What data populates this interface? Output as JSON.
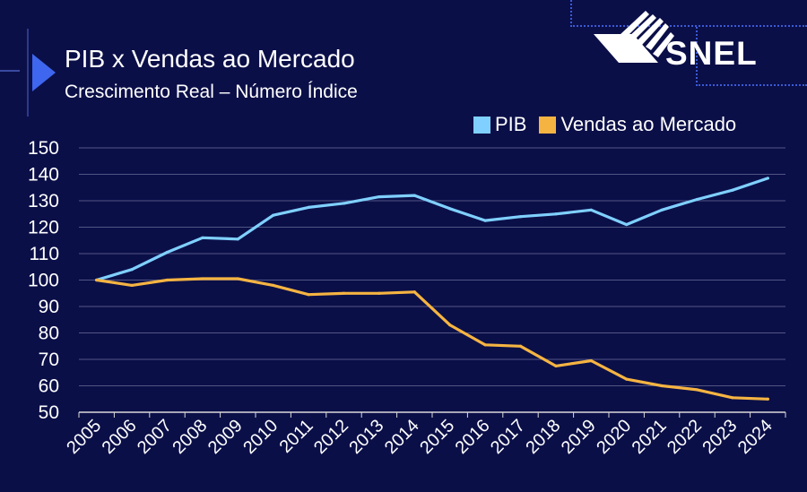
{
  "header": {
    "title": "PIB x Vendas ao Mercado",
    "subtitle": "Crescimento Real – Número Índice"
  },
  "brand": {
    "name": "SNEL"
  },
  "colors": {
    "background": "#0b0f48",
    "pib": "#7fd0ff",
    "vendas": "#f5b442",
    "grid": "#ffffff",
    "accent": "#3f66ee"
  },
  "chart_data": {
    "type": "line",
    "title": "PIB x Vendas ao Mercado",
    "subtitle": "Crescimento Real – Número Índice",
    "xlabel": "",
    "ylabel": "",
    "ylim": [
      50,
      150
    ],
    "yticks": [
      50,
      60,
      70,
      80,
      90,
      100,
      110,
      120,
      130,
      140,
      150
    ],
    "grid": true,
    "legend_position": "top-right",
    "categories": [
      "2005",
      "2006",
      "2007",
      "2008",
      "2009",
      "2010",
      "2011",
      "2012",
      "2013",
      "2014",
      "2015",
      "2016",
      "2017",
      "2018",
      "2019",
      "2020",
      "2021",
      "2022",
      "2023",
      "2024"
    ],
    "series": [
      {
        "name": "PIB",
        "color": "#7fd0ff",
        "values": [
          100,
          104,
          110.5,
          116,
          115.5,
          124.5,
          127.5,
          129,
          131.5,
          132,
          127,
          122.5,
          124,
          125,
          126.5,
          121,
          126.5,
          130.5,
          134,
          138.5
        ]
      },
      {
        "name": "Vendas ao Mercado",
        "color": "#f5b442",
        "values": [
          100,
          98,
          100,
          100.5,
          100.5,
          98,
          94.5,
          95,
          95,
          95.5,
          83,
          75.5,
          75,
          67.5,
          69.5,
          62.5,
          60,
          58.5,
          55.5,
          55
        ]
      }
    ]
  }
}
